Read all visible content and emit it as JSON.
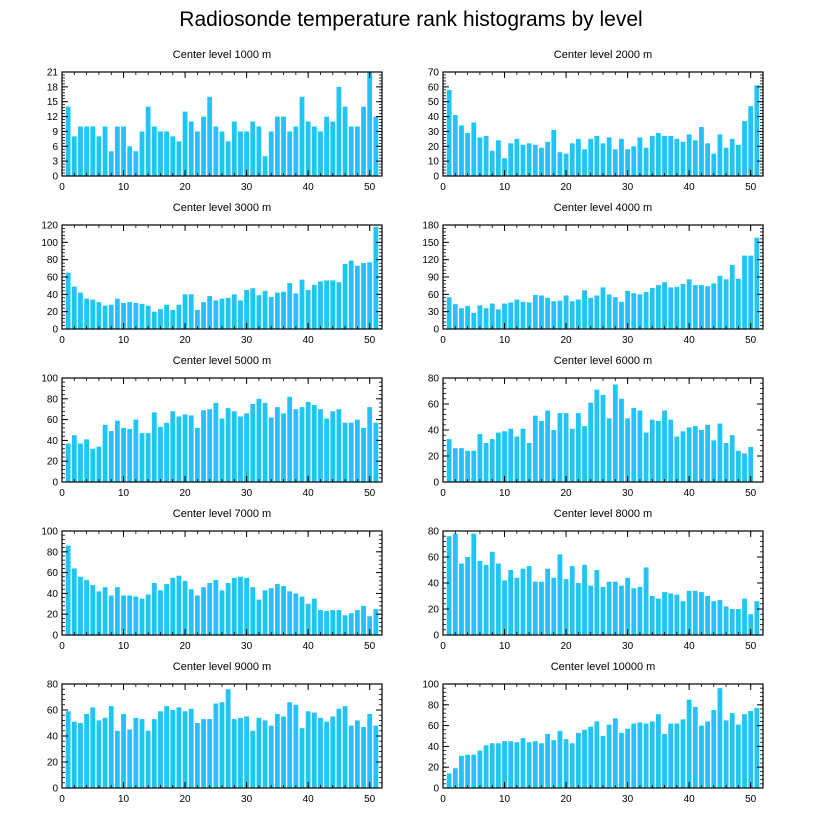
{
  "title": "Radiosonde temperature rank histograms by level",
  "colors": {
    "bar": "#1EC5F5",
    "axis": "#000000",
    "background": "#ffffff"
  },
  "chart_data": [
    {
      "type": "bar",
      "title": "Center level 1000 m",
      "xlim": [
        0,
        52
      ],
      "ylim": [
        0,
        21
      ],
      "xticks": [
        0,
        10,
        20,
        30,
        40,
        50
      ],
      "yticks": [
        0,
        3,
        6,
        9,
        12,
        15,
        18,
        21
      ],
      "values": [
        14,
        8,
        10,
        10,
        10,
        8,
        10,
        5,
        10,
        10,
        6,
        5,
        9,
        14,
        10,
        9,
        9,
        8,
        7,
        13,
        11,
        9,
        12,
        16,
        10,
        9,
        7,
        11,
        9,
        9,
        11,
        10,
        4,
        9,
        12,
        12,
        9,
        10,
        16,
        11,
        10,
        9,
        12,
        11,
        18,
        14,
        10,
        10,
        14,
        21,
        12
      ]
    },
    {
      "type": "bar",
      "title": "Center level 2000 m",
      "xlim": [
        0,
        52
      ],
      "ylim": [
        0,
        70
      ],
      "xticks": [
        0,
        10,
        20,
        30,
        40,
        50
      ],
      "yticks": [
        0,
        10,
        20,
        30,
        40,
        50,
        60,
        70
      ],
      "values": [
        58,
        41,
        34,
        29,
        36,
        26,
        27,
        17,
        24,
        12,
        22,
        25,
        21,
        22,
        21,
        19,
        23,
        31,
        16,
        15,
        22,
        25,
        18,
        25,
        27,
        22,
        26,
        18,
        25,
        18,
        20,
        26,
        19,
        27,
        29,
        27,
        27,
        25,
        23,
        28,
        24,
        33,
        22,
        15,
        28,
        19,
        25,
        21,
        37,
        47,
        61
      ]
    },
    {
      "type": "bar",
      "title": "Center level 3000 m",
      "xlim": [
        0,
        52
      ],
      "ylim": [
        0,
        120
      ],
      "xticks": [
        0,
        10,
        20,
        30,
        40,
        50
      ],
      "yticks": [
        0,
        20,
        40,
        60,
        80,
        100,
        120
      ],
      "values": [
        65,
        49,
        42,
        35,
        34,
        31,
        27,
        28,
        35,
        30,
        31,
        30,
        29,
        27,
        20,
        23,
        28,
        22,
        28,
        40,
        40,
        22,
        31,
        38,
        33,
        35,
        36,
        40,
        33,
        45,
        47,
        39,
        44,
        37,
        42,
        43,
        53,
        41,
        57,
        45,
        51,
        55,
        56,
        56,
        54,
        75,
        79,
        73,
        76,
        77,
        118
      ]
    },
    {
      "type": "bar",
      "title": "Center level 4000 m",
      "xlim": [
        0,
        52
      ],
      "ylim": [
        0,
        180
      ],
      "xticks": [
        0,
        10,
        20,
        30,
        40,
        50
      ],
      "yticks": [
        0,
        30,
        60,
        90,
        120,
        150,
        180
      ],
      "values": [
        55,
        43,
        36,
        40,
        28,
        41,
        36,
        44,
        34,
        44,
        46,
        51,
        47,
        46,
        59,
        58,
        54,
        48,
        49,
        58,
        48,
        51,
        67,
        54,
        58,
        72,
        60,
        55,
        47,
        66,
        62,
        60,
        64,
        71,
        76,
        81,
        72,
        73,
        78,
        86,
        76,
        76,
        74,
        79,
        92,
        86,
        111,
        87,
        127,
        127,
        158
      ]
    },
    {
      "type": "bar",
      "title": "Center level 5000 m",
      "xlim": [
        0,
        52
      ],
      "ylim": [
        0,
        100
      ],
      "xticks": [
        0,
        10,
        20,
        30,
        40,
        50
      ],
      "yticks": [
        0,
        20,
        40,
        60,
        80,
        100
      ],
      "values": [
        37,
        45,
        37,
        41,
        32,
        34,
        55,
        49,
        59,
        52,
        51,
        60,
        47,
        47,
        67,
        53,
        57,
        68,
        63,
        65,
        64,
        52,
        69,
        70,
        76,
        61,
        71,
        68,
        63,
        66,
        75,
        80,
        76,
        62,
        72,
        66,
        82,
        70,
        72,
        77,
        74,
        70,
        61,
        68,
        70,
        57,
        57,
        60,
        52,
        72,
        57
      ]
    },
    {
      "type": "bar",
      "title": "Center level 6000 m",
      "xlim": [
        0,
        52
      ],
      "ylim": [
        0,
        80
      ],
      "xticks": [
        0,
        10,
        20,
        30,
        40,
        50
      ],
      "yticks": [
        0,
        20,
        40,
        60,
        80
      ],
      "values": [
        33,
        26,
        26,
        24,
        24,
        37,
        30,
        33,
        38,
        39,
        41,
        35,
        41,
        30,
        51,
        47,
        55,
        40,
        53,
        53,
        41,
        53,
        43,
        61,
        71,
        67,
        49,
        75,
        64,
        49,
        57,
        55,
        38,
        48,
        47,
        55,
        48,
        35,
        39,
        42,
        43,
        40,
        44,
        32,
        45,
        30,
        36,
        24,
        22,
        27
      ]
    },
    {
      "type": "bar",
      "title": "Center level 7000 m",
      "xlim": [
        0,
        52
      ],
      "ylim": [
        0,
        100
      ],
      "xticks": [
        0,
        10,
        20,
        30,
        40,
        50
      ],
      "yticks": [
        0,
        20,
        40,
        60,
        80,
        100
      ],
      "values": [
        86,
        64,
        56,
        53,
        48,
        42,
        46,
        38,
        46,
        38,
        38,
        37,
        35,
        39,
        50,
        43,
        49,
        55,
        57,
        52,
        44,
        38,
        46,
        50,
        53,
        43,
        50,
        55,
        56,
        55,
        46,
        34,
        43,
        45,
        49,
        47,
        42,
        40,
        37,
        30,
        35,
        24,
        23,
        24,
        24,
        19,
        21,
        24,
        28,
        18,
        25
      ]
    },
    {
      "type": "bar",
      "title": "Center level 8000 m",
      "xlim": [
        0,
        52
      ],
      "ylim": [
        0,
        80
      ],
      "xticks": [
        0,
        10,
        20,
        30,
        40,
        50
      ],
      "yticks": [
        0,
        20,
        40,
        60,
        80
      ],
      "values": [
        76,
        78,
        55,
        60,
        78,
        57,
        54,
        64,
        55,
        42,
        50,
        44,
        51,
        53,
        41,
        41,
        51,
        44,
        62,
        43,
        53,
        40,
        54,
        38,
        50,
        37,
        41,
        41,
        38,
        44,
        36,
        37,
        52,
        30,
        28,
        33,
        32,
        31,
        26,
        34,
        34,
        33,
        30,
        26,
        27,
        22,
        20,
        20,
        28,
        16,
        26
      ]
    },
    {
      "type": "bar",
      "title": "Center level 9000 m",
      "xlim": [
        0,
        52
      ],
      "ylim": [
        0,
        80
      ],
      "xticks": [
        0,
        10,
        20,
        30,
        40,
        50
      ],
      "yticks": [
        0,
        20,
        40,
        60,
        80
      ],
      "values": [
        59,
        51,
        50,
        57,
        62,
        52,
        54,
        63,
        44,
        57,
        45,
        54,
        53,
        44,
        53,
        59,
        63,
        60,
        62,
        59,
        61,
        50,
        53,
        53,
        65,
        66,
        76,
        53,
        54,
        55,
        44,
        54,
        52,
        48,
        57,
        55,
        66,
        64,
        46,
        59,
        58,
        54,
        51,
        55,
        61,
        63,
        48,
        52,
        47,
        57,
        48
      ]
    },
    {
      "type": "bar",
      "title": "Center level 10000 m",
      "xlim": [
        0,
        52
      ],
      "ylim": [
        0,
        100
      ],
      "xticks": [
        0,
        10,
        20,
        30,
        40,
        50
      ],
      "yticks": [
        0,
        20,
        40,
        60,
        80,
        100
      ],
      "values": [
        14,
        19,
        31,
        32,
        32,
        36,
        41,
        43,
        43,
        45,
        45,
        44,
        48,
        44,
        45,
        43,
        52,
        46,
        55,
        47,
        43,
        53,
        56,
        59,
        64,
        50,
        61,
        67,
        53,
        57,
        62,
        63,
        62,
        64,
        71,
        52,
        62,
        62,
        66,
        85,
        78,
        60,
        64,
        75,
        96,
        65,
        72,
        61,
        71,
        74,
        77
      ]
    }
  ]
}
